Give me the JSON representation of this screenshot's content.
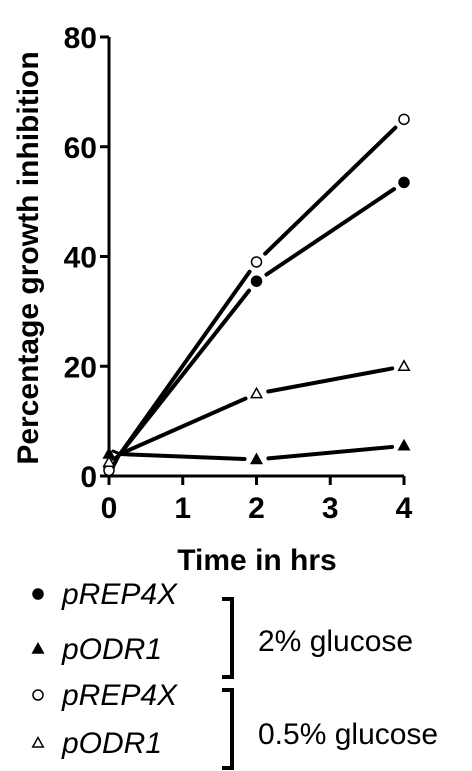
{
  "chart_data": {
    "type": "line",
    "xlabel": "Time in hrs",
    "ylabel": "Percentage growth inhibition",
    "xlim": [
      0,
      4
    ],
    "ylim": [
      0,
      80
    ],
    "xticks": [
      0,
      1,
      2,
      3,
      4
    ],
    "yticks": [
      0,
      20,
      40,
      60,
      80
    ],
    "grid": false,
    "legend_position": "bottom",
    "series": [
      {
        "name": "pREP4X",
        "group": "2% glucose",
        "marker": "filled-circle",
        "x": [
          0,
          2,
          4
        ],
        "y": [
          1.5,
          35.5,
          53.5
        ]
      },
      {
        "name": "pODR1",
        "group": "2% glucose",
        "marker": "filled-triangle",
        "x": [
          0,
          2,
          4
        ],
        "y": [
          4,
          3,
          5.5
        ]
      },
      {
        "name": "pREP4X",
        "group": "0.5% glucose",
        "marker": "open-circle",
        "x": [
          0,
          2,
          4
        ],
        "y": [
          1,
          39,
          65
        ]
      },
      {
        "name": "pODR1",
        "group": "0.5% glucose",
        "marker": "open-triangle",
        "x": [
          0,
          2,
          4
        ],
        "y": [
          2.5,
          15,
          20
        ]
      }
    ],
    "legend_groups": [
      "2% glucose",
      "0.5% glucose"
    ]
  }
}
